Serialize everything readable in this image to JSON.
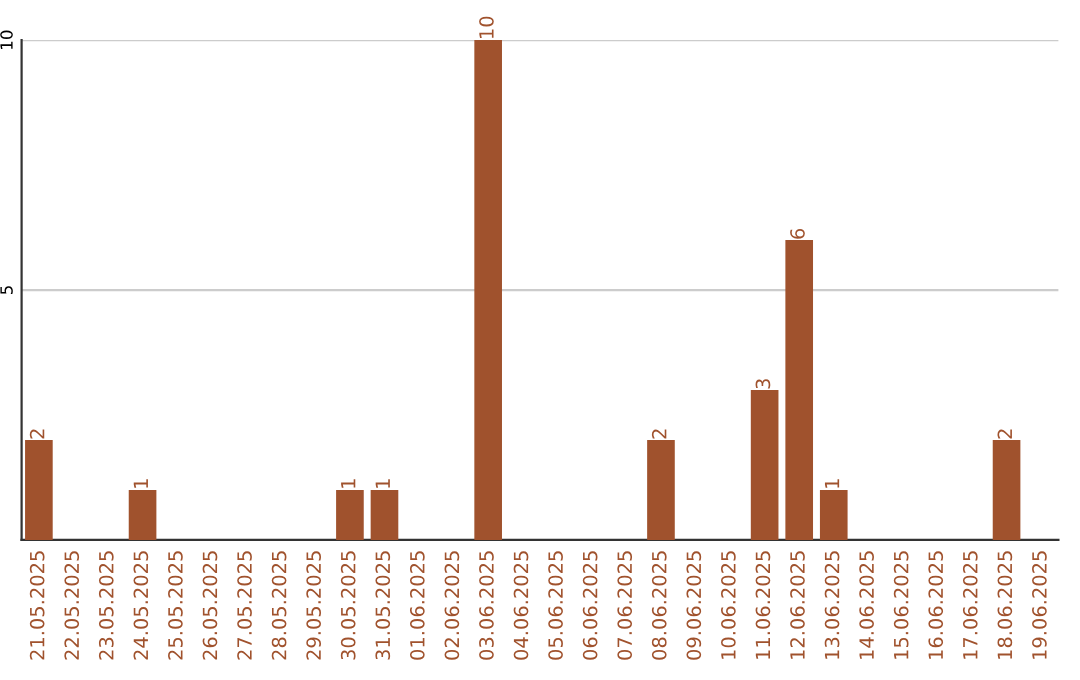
{
  "chart_data": {
    "type": "bar",
    "categories": [
      "21.05.2025",
      "22.05.2025",
      "23.05.2025",
      "24.05.2025",
      "25.05.2025",
      "26.05.2025",
      "27.05.2025",
      "28.05.2025",
      "29.05.2025",
      "30.05.2025",
      "31.05.2025",
      "01.06.2025",
      "02.06.2025",
      "03.06.2025",
      "04.06.2025",
      "05.06.2025",
      "06.06.2025",
      "07.06.2025",
      "08.06.2025",
      "09.06.2025",
      "10.06.2025",
      "11.06.2025",
      "12.06.2025",
      "13.06.2025",
      "14.06.2025",
      "15.06.2025",
      "16.06.2025",
      "17.06.2025",
      "18.06.2025",
      "19.06.2025"
    ],
    "values": [
      2,
      0,
      0,
      1,
      0,
      0,
      0,
      0,
      0,
      1,
      1,
      0,
      0,
      10,
      0,
      0,
      0,
      0,
      2,
      0,
      0,
      3,
      6,
      1,
      0,
      0,
      0,
      0,
      2,
      0
    ],
    "value_labels": [
      "2",
      null,
      null,
      "1",
      null,
      null,
      null,
      null,
      null,
      "1",
      "1",
      null,
      null,
      "10",
      null,
      null,
      null,
      null,
      "2",
      null,
      null,
      "3",
      "6",
      "1",
      null,
      null,
      null,
      null,
      "2",
      null
    ],
    "color": "#a0522d",
    "ylim": [
      0,
      10
    ],
    "yticks": [
      5,
      10
    ],
    "grid": "y"
  }
}
